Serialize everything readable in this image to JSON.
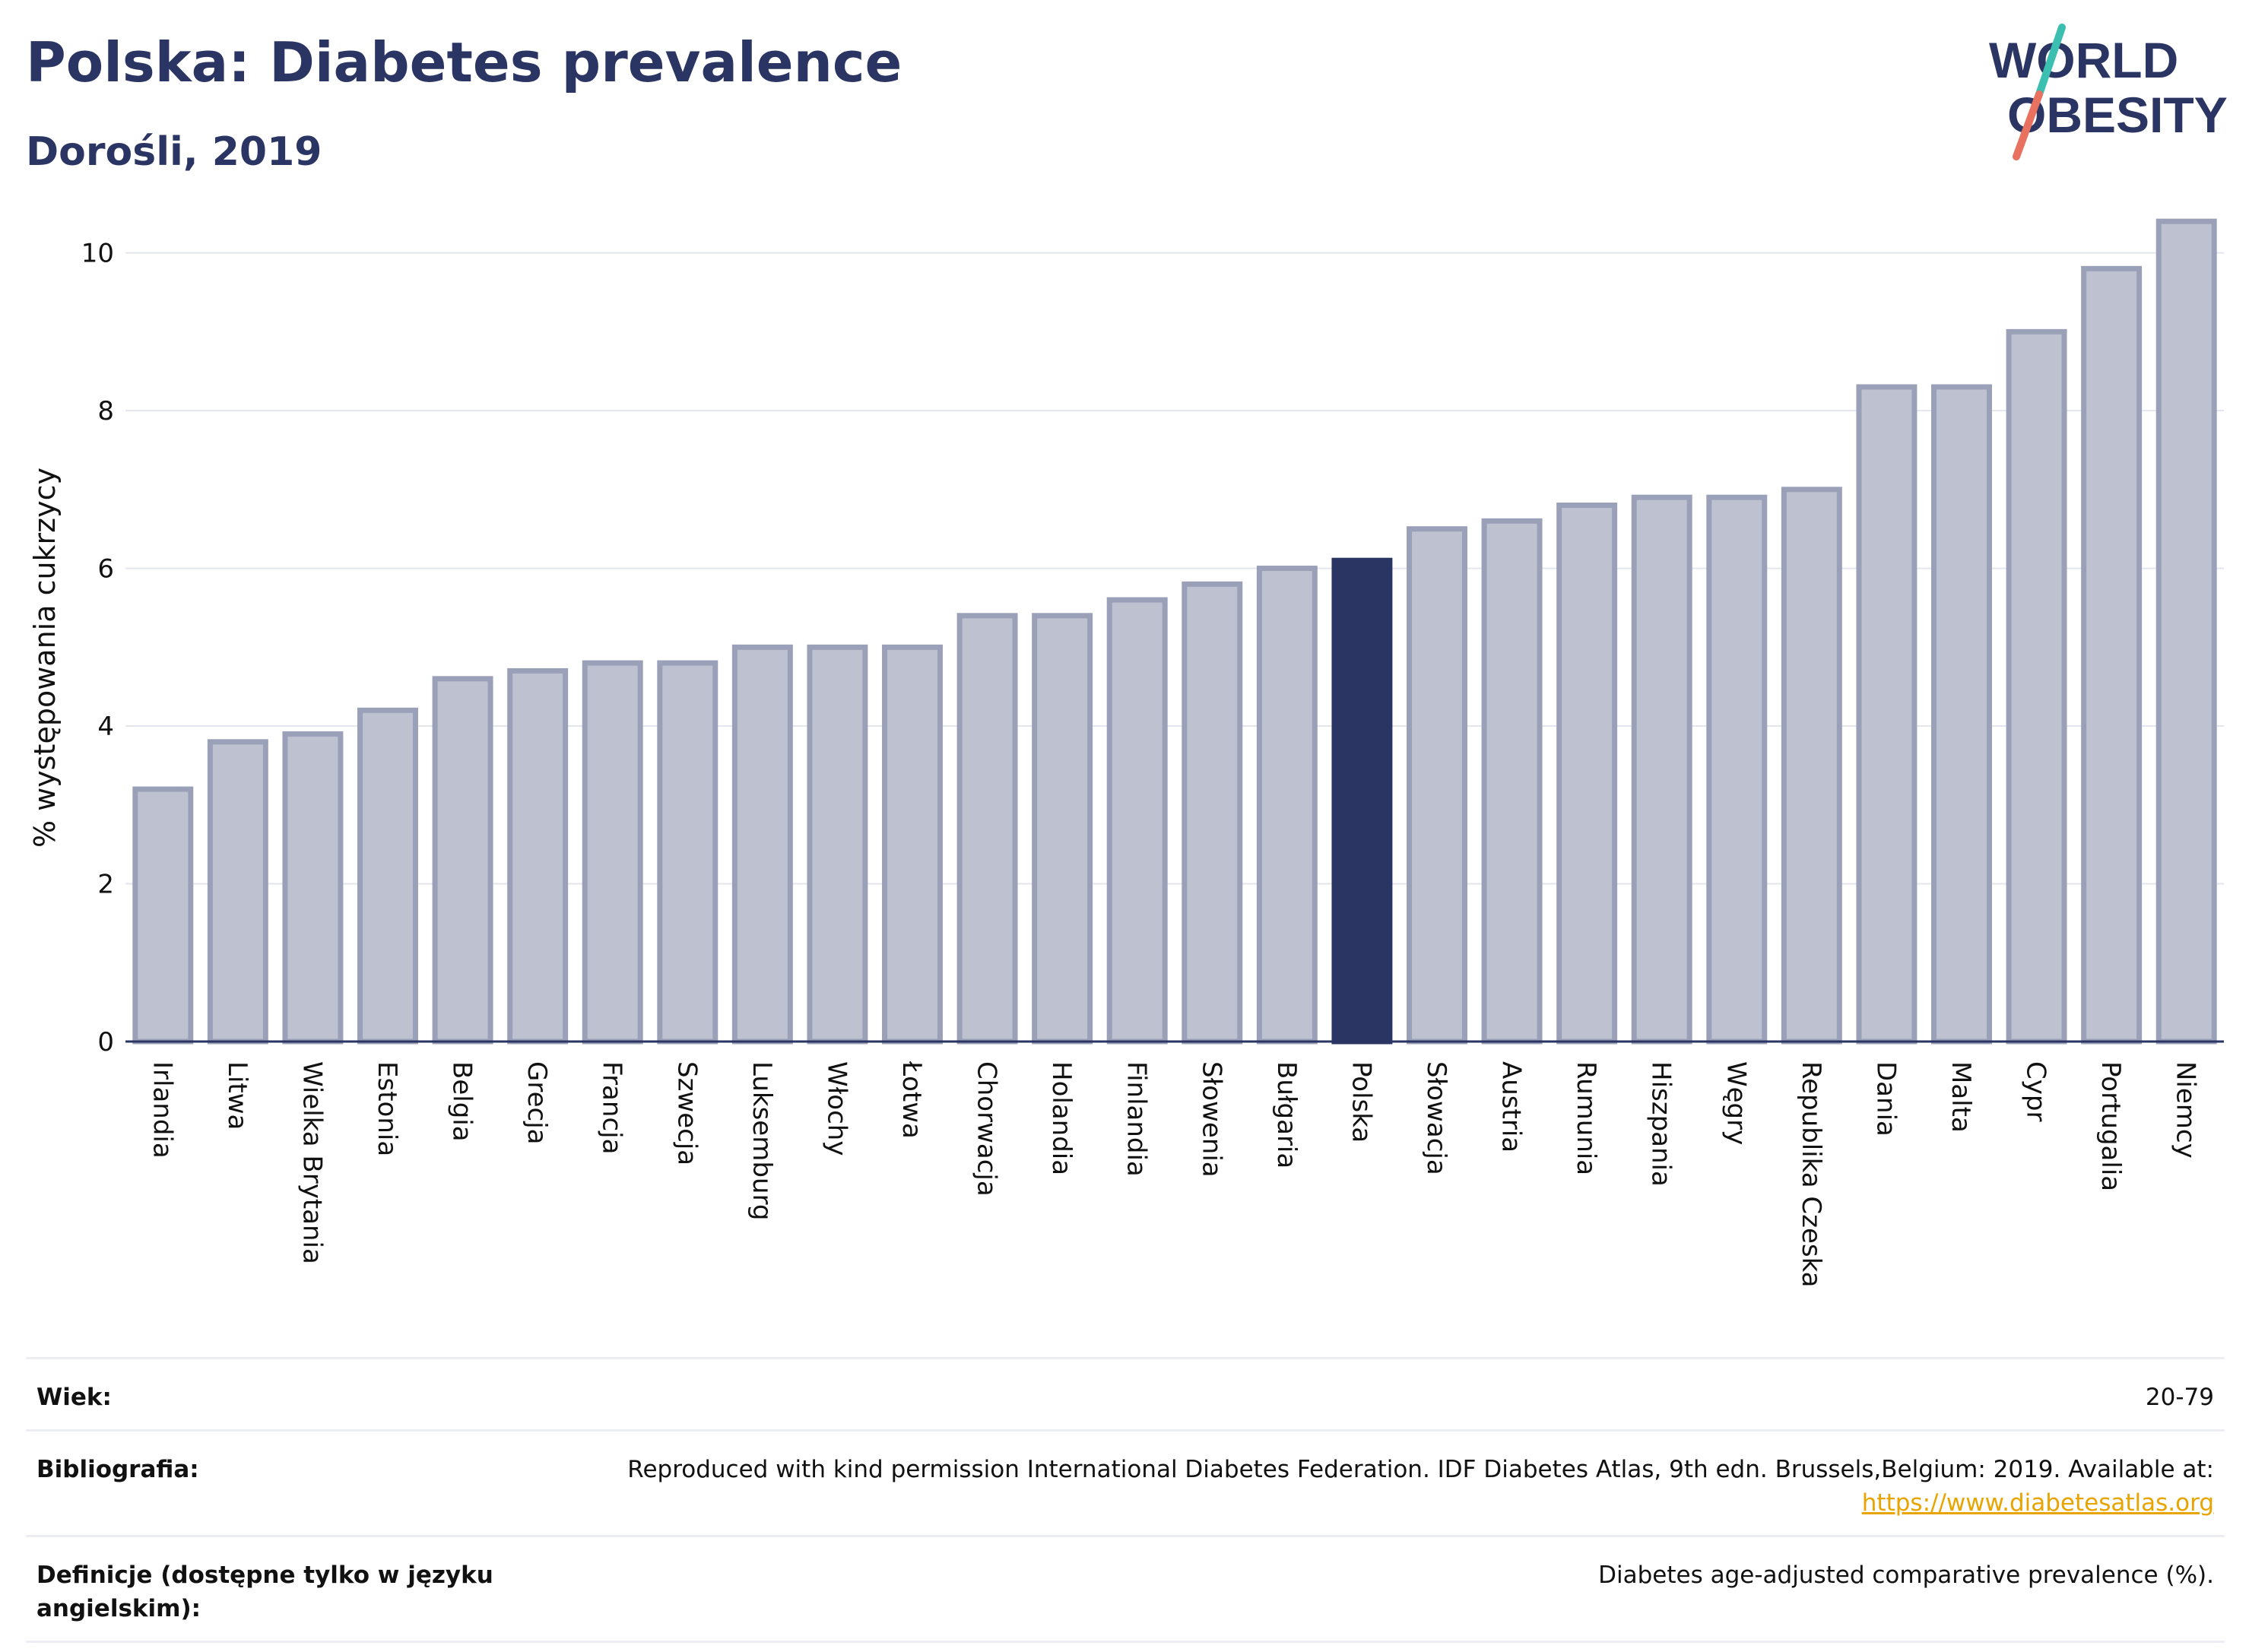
{
  "header": {
    "title": "Polska: Diabetes prevalence",
    "subtitle": "Dorośli, 2019"
  },
  "logo": {
    "line1": "WORLD",
    "line2": "OBESITY",
    "colors": {
      "text": "#2a3563",
      "slash_teal": "#3bbfb1",
      "slash_coral": "#e8715f"
    }
  },
  "colors": {
    "highlight_bar": "#2a3563",
    "default_bar": "#bec2d0",
    "default_bar_stroke": "#9aa0b8",
    "grid": "#e4e6ee",
    "link": "#e8a400"
  },
  "chart_data": {
    "type": "bar",
    "title": "Polska: Diabetes prevalence",
    "subtitle": "Dorośli, 2019",
    "xlabel": "",
    "ylabel": "% występowania cukrzycy",
    "ylim": [
      0,
      10.7
    ],
    "yticks": [
      0,
      2,
      4,
      6,
      8,
      10
    ],
    "grid": true,
    "highlight": "Polska",
    "categories": [
      "Irlandia",
      "Litwa",
      "Wielka Brytania",
      "Estonia",
      "Belgia",
      "Grecja",
      "Francja",
      "Szwecja",
      "Luksemburg",
      "Włochy",
      "Łotwa",
      "Chorwacja",
      "Holandia",
      "Finlandia",
      "Słowenia",
      "Bułgaria",
      "Polska",
      "Słowacja",
      "Austria",
      "Rumunia",
      "Hiszpania",
      "Węgry",
      "Republika Czeska",
      "Dania",
      "Malta",
      "Cypr",
      "Portugalia",
      "Niemcy"
    ],
    "values": [
      3.2,
      3.8,
      3.9,
      4.2,
      4.6,
      4.7,
      4.8,
      4.8,
      5.0,
      5.0,
      5.0,
      5.4,
      5.4,
      5.6,
      5.8,
      6.0,
      6.1,
      6.5,
      6.6,
      6.8,
      6.9,
      6.9,
      7.0,
      8.3,
      8.3,
      9.0,
      9.8,
      10.4
    ]
  },
  "meta": {
    "rows": [
      {
        "label": "Wiek:",
        "value": "20-79"
      },
      {
        "label": "Bibliografia:",
        "value": "Reproduced with kind permission International Diabetes Federation. IDF Diabetes Atlas, 9th edn. Brussels,Belgium: 2019. Available at:",
        "link": "https://www.diabetesatlas.org"
      },
      {
        "label": "Definicje (dostępne tylko w języku angielskim):",
        "value": "Diabetes age-adjusted comparative prevalence (%)."
      }
    ]
  }
}
